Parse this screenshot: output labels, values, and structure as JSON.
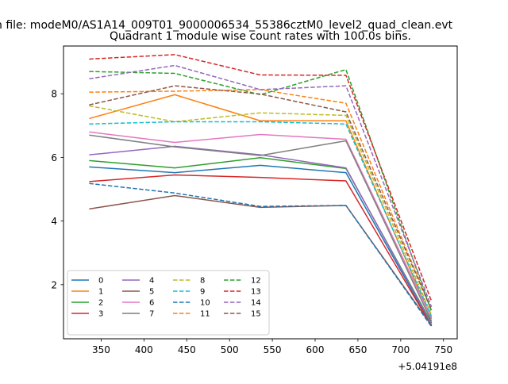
{
  "chart_data": {
    "type": "line",
    "suptitle": "n file: modeM0/AS1A14_009T01_9000006534_55386cztM0_level2_quad_clean.evt",
    "title": "Quadrant 1 module wise count rates with 100.0s bins.",
    "xlabel": "",
    "ylabel": "",
    "x_offset_label": "+5.04191e8",
    "x": [
      336,
      436,
      536,
      636,
      736
    ],
    "xlim": [
      306,
      766
    ],
    "ylim": [
      0.3,
      9.5
    ],
    "xticks": [
      350,
      400,
      450,
      500,
      550,
      600,
      650,
      700,
      750
    ],
    "xtick_labels": [
      "350",
      "400",
      "450",
      "500",
      "550",
      "600",
      "650",
      "700",
      "750"
    ],
    "yticks": [
      2,
      4,
      6,
      8
    ],
    "ytick_labels": [
      "2",
      "4",
      "6",
      "8"
    ],
    "grid": false,
    "legend_position": "lower-left",
    "legend_columns": 4,
    "series": [
      {
        "name": "0",
        "color": "#1f77b4",
        "style": "solid",
        "values": [
          5.7,
          5.52,
          5.75,
          5.52,
          0.72
        ]
      },
      {
        "name": "1",
        "color": "#ff7f0e",
        "style": "solid",
        "values": [
          7.22,
          7.97,
          7.15,
          7.15,
          0.92
        ]
      },
      {
        "name": "2",
        "color": "#2ca02c",
        "style": "solid",
        "values": [
          5.9,
          5.67,
          5.99,
          5.65,
          0.8
        ]
      },
      {
        "name": "3",
        "color": "#d62728",
        "style": "solid",
        "values": [
          5.24,
          5.45,
          5.37,
          5.26,
          0.7
        ]
      },
      {
        "name": "4",
        "color": "#9467bd",
        "style": "solid",
        "values": [
          6.08,
          6.35,
          6.08,
          5.67,
          0.75
        ]
      },
      {
        "name": "5",
        "color": "#8c564b",
        "style": "solid",
        "values": [
          4.38,
          4.8,
          4.43,
          4.49,
          0.72
        ]
      },
      {
        "name": "6",
        "color": "#e377c2",
        "style": "solid",
        "values": [
          6.8,
          6.47,
          6.72,
          6.57,
          0.95
        ]
      },
      {
        "name": "7",
        "color": "#7f7f7f",
        "style": "solid",
        "values": [
          6.7,
          6.33,
          6.06,
          6.52,
          0.85
        ]
      },
      {
        "name": "8",
        "color": "#bcbd22",
        "style": "dashed",
        "values": [
          7.62,
          7.12,
          7.4,
          7.32,
          1.05
        ]
      },
      {
        "name": "9",
        "color": "#17becf",
        "style": "dashed",
        "values": [
          7.05,
          7.12,
          7.12,
          7.05,
          1.0
        ]
      },
      {
        "name": "10",
        "color": "#1f77b4",
        "style": "dashed",
        "values": [
          5.18,
          4.88,
          4.46,
          4.49,
          0.68
        ]
      },
      {
        "name": "11",
        "color": "#ff7f0e",
        "style": "dashed",
        "values": [
          8.05,
          8.08,
          8.13,
          7.7,
          1.2
        ]
      },
      {
        "name": "12",
        "color": "#2ca02c",
        "style": "dashed",
        "values": [
          8.7,
          8.64,
          7.97,
          8.76,
          1.15
        ]
      },
      {
        "name": "13",
        "color": "#d62728",
        "style": "dashed",
        "values": [
          9.09,
          9.23,
          8.59,
          8.58,
          1.48
        ]
      },
      {
        "name": "14",
        "color": "#9467bd",
        "style": "dashed",
        "values": [
          8.47,
          8.89,
          8.13,
          8.25,
          1.3
        ]
      },
      {
        "name": "15",
        "color": "#8c564b",
        "style": "dashed",
        "values": [
          7.65,
          8.25,
          7.99,
          7.43,
          1.2
        ]
      }
    ]
  }
}
